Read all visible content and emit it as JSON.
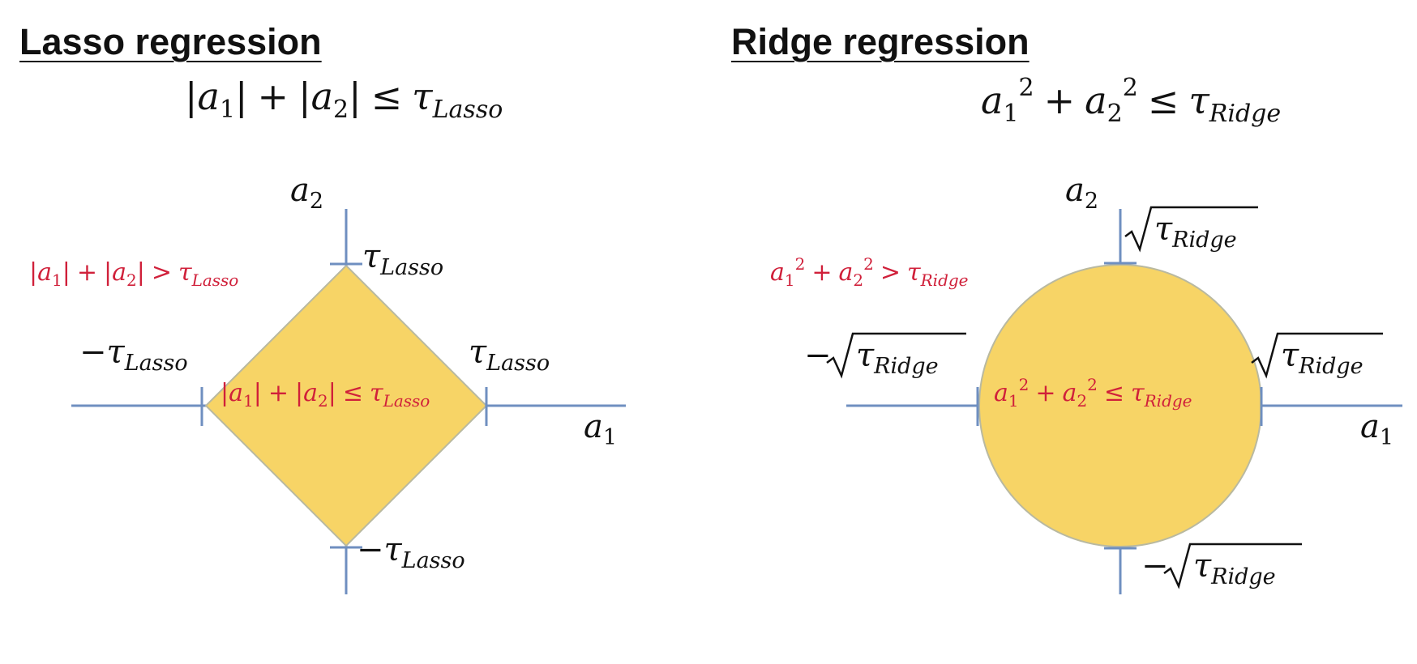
{
  "lasso": {
    "title": "Lasso regression",
    "constraint": {
      "lhs_a1": "a",
      "sub1": "1",
      "lhs_a2": "a",
      "sub2": "2",
      "op": "≤",
      "tau": "τ",
      "tau_sub": "Lasso"
    },
    "outside_label": "|a1| + |a2| > τLasso",
    "inside_label": "|a1| + |a2| ≤ τLasso",
    "axis_x": "a1",
    "axis_y": "a2",
    "tick_top": "τLasso",
    "tick_right": "τLasso",
    "tick_left": "−τLasso",
    "tick_bottom": "−τLasso"
  },
  "ridge": {
    "title": "Ridge regression",
    "constraint": {
      "a": "a",
      "sub1": "1",
      "sub2": "2",
      "sup": "2",
      "op": "≤",
      "tau": "τ",
      "tau_sub": "Ridge"
    },
    "outside_label": "a1² + a2² > τRidge",
    "inside_label": "a1² + a2² ≤ τRidge",
    "axis_x": "a1",
    "axis_y": "a2",
    "tick_top": "√τRidge",
    "tick_right": "√τRidge",
    "tick_left": "−√τRidge",
    "tick_bottom": "−√τRidge"
  },
  "colors": {
    "region_fill": "#f7d466",
    "region_stroke": "#b9b9a0",
    "axis": "#6f8fc0",
    "label_red": "#d0203a",
    "text": "#111111"
  }
}
